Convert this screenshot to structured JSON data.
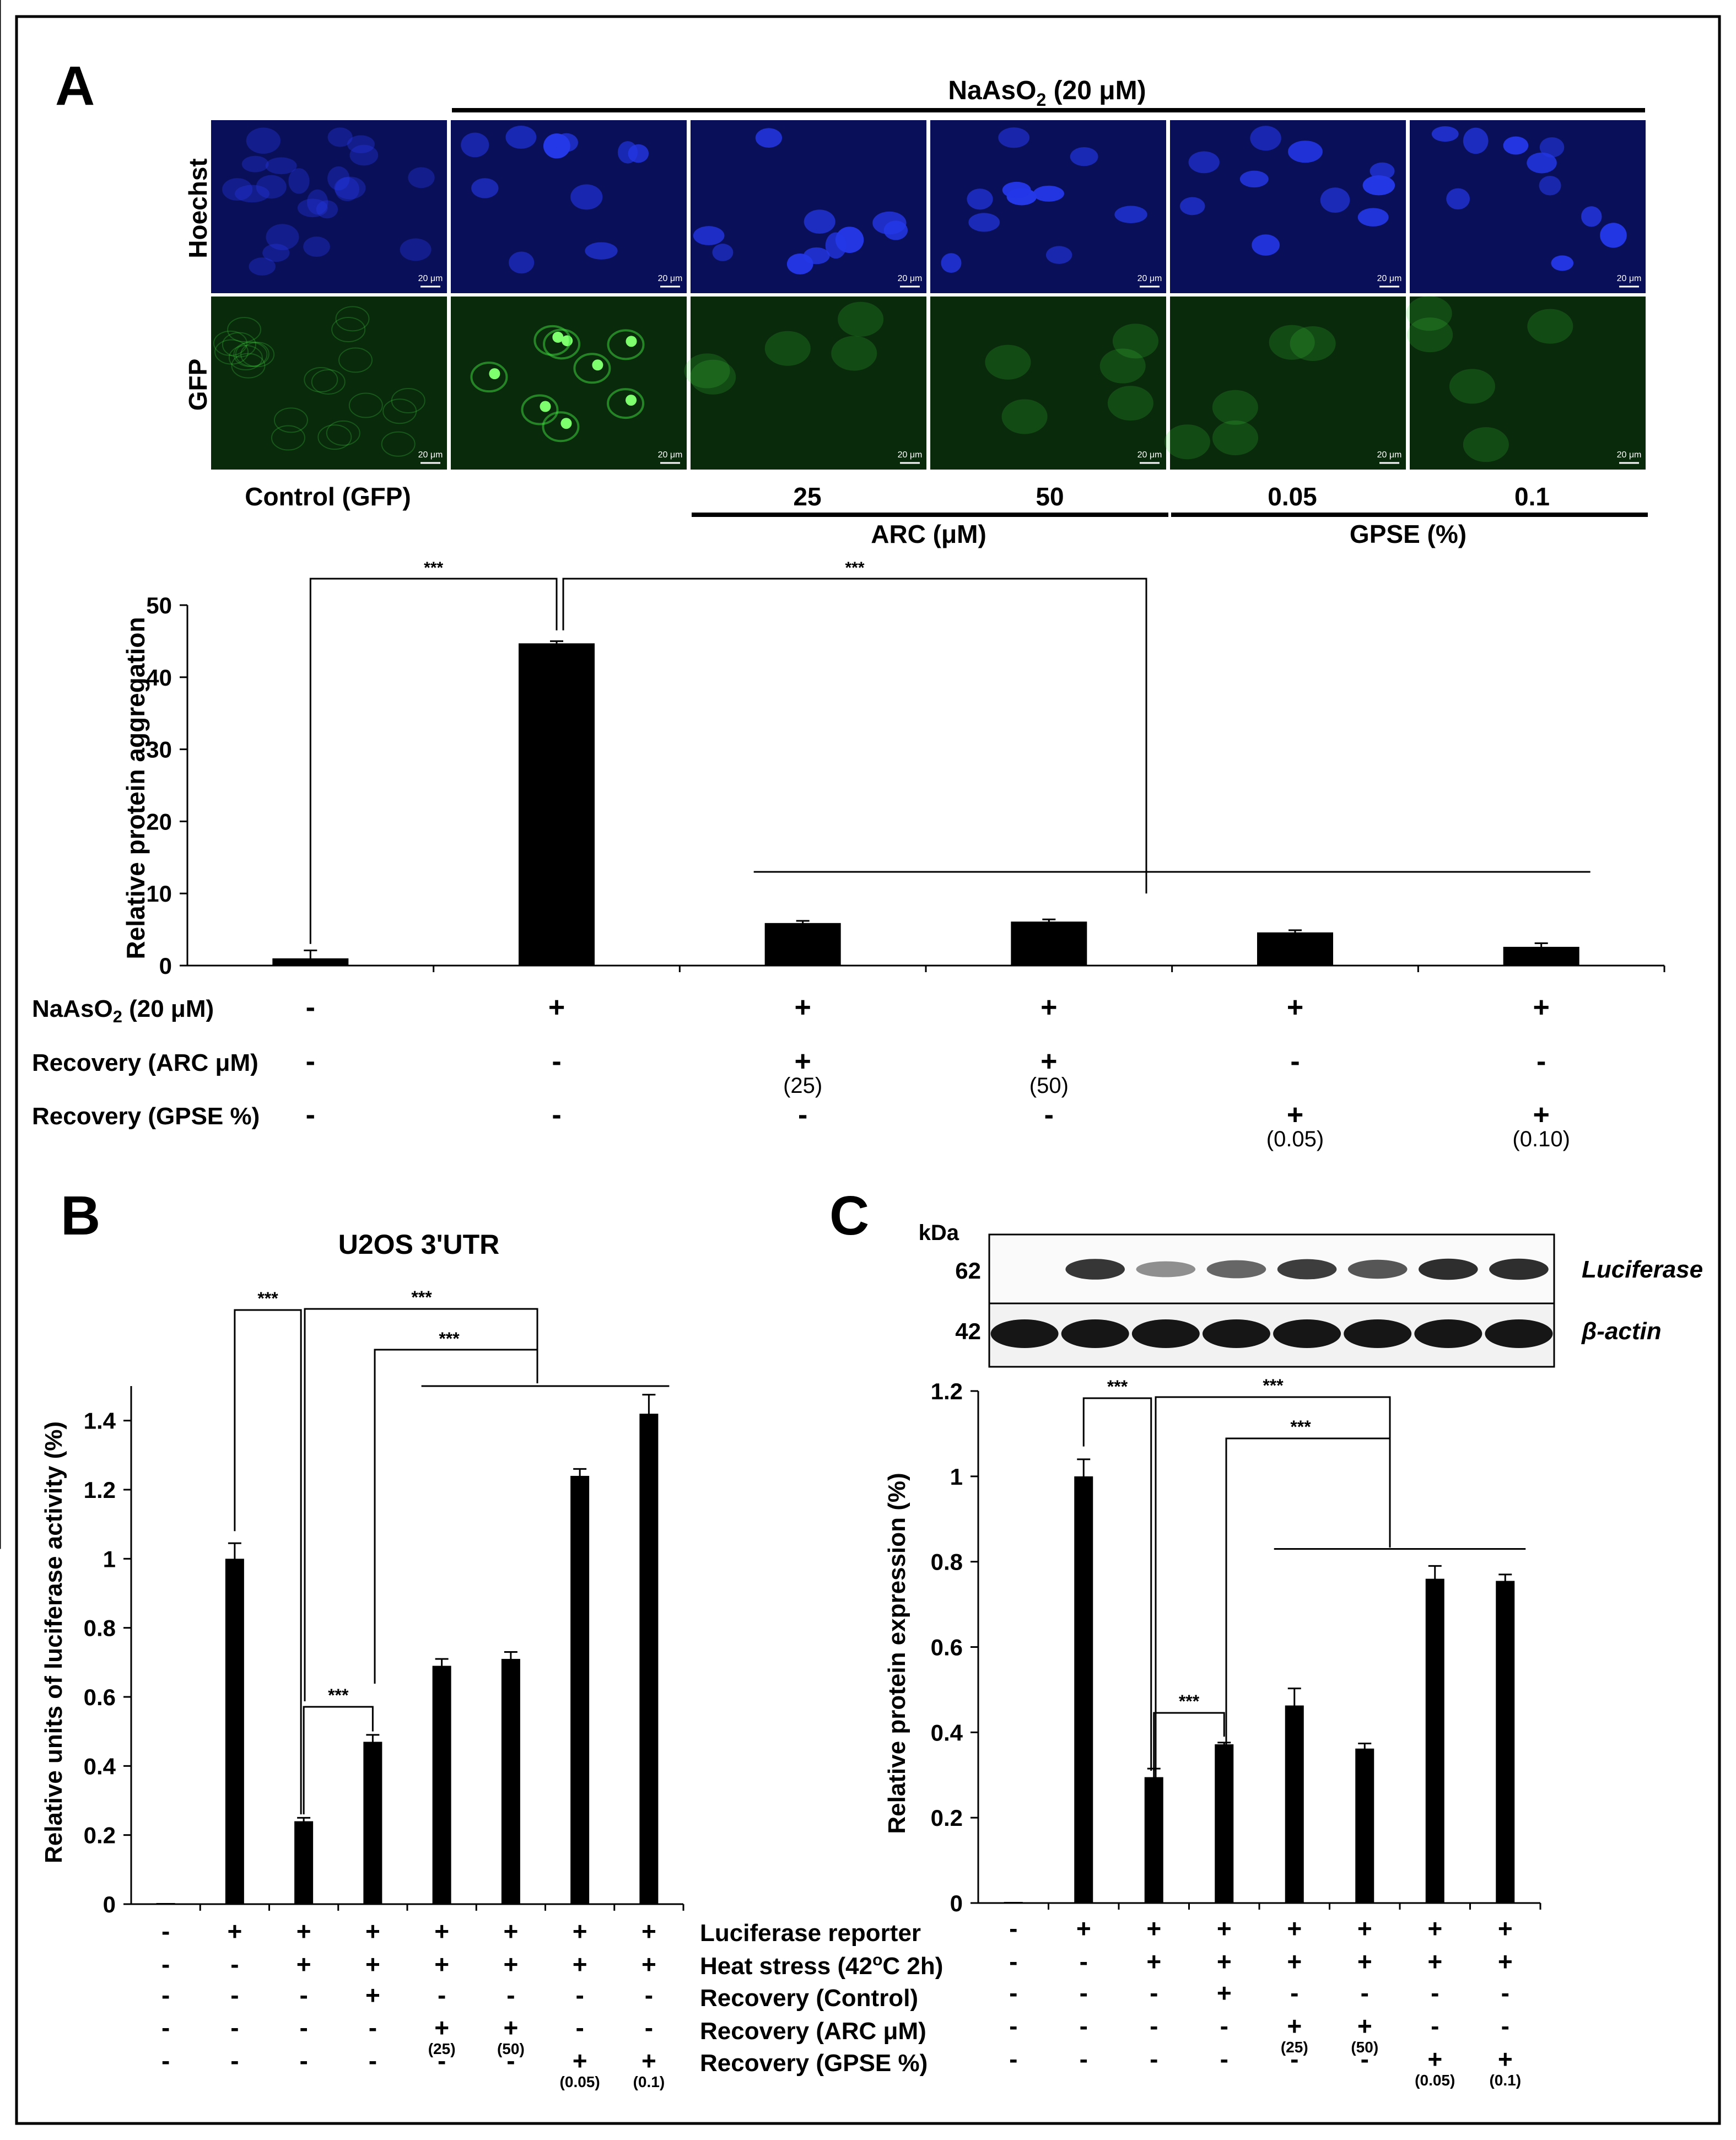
{
  "panel_labels": {
    "a": "A",
    "b": "B",
    "c": "C"
  },
  "panel_a": {
    "treatment_header": "NaAsO",
    "treatment_header_sub": "2",
    "treatment_header_rest": " (20  μM)",
    "row_labels": [
      "Hoechst",
      "GFP"
    ],
    "scale_bar_label": "20 μm",
    "colors": {
      "hoechst": "#0a0f5a",
      "gfp": "#0a2a0c",
      "nucleus": "#2438e8",
      "gfp_signal": "#3fe040"
    },
    "column_labels": [
      "Control (GFP)",
      "",
      "25",
      "50",
      "0.05",
      "0.1"
    ],
    "group_labels": {
      "arc": "ARC (μM)",
      "gpse": "GPSE (%)"
    }
  },
  "chart_data": [
    {
      "type": "bar",
      "ylabel": "Relative protein aggregation",
      "ylim": [
        0,
        50
      ],
      "yticks": [
        "0",
        "10",
        "20",
        "30",
        "40",
        "50"
      ],
      "values": [
        1.0,
        44.7,
        5.9,
        6.1,
        4.6,
        2.6
      ],
      "errors": [
        1.1,
        0.3,
        0.3,
        0.3,
        0.3,
        0.5
      ],
      "significance": [
        "***",
        "***"
      ],
      "rows": [
        {
          "label": "NaAsO",
          "label_sub": "2",
          "label_rest": " (20 μM)",
          "cells": [
            "-",
            "+",
            "+",
            "+",
            "+",
            "+"
          ],
          "notes": [
            "",
            "",
            "",
            "",
            "",
            ""
          ]
        },
        {
          "label": "Recovery (ARC μM)",
          "label_sub": "",
          "label_rest": "",
          "cells": [
            "-",
            "-",
            "+",
            "+",
            "-",
            "-"
          ],
          "notes": [
            "",
            "",
            "(25)",
            "(50)",
            "",
            ""
          ]
        },
        {
          "label": "Recovery (GPSE %)",
          "label_sub": "",
          "label_rest": "",
          "cells": [
            "-",
            "-",
            "-",
            "-",
            "+",
            "+"
          ],
          "notes": [
            "",
            "",
            "",
            "",
            "(0.05)",
            "(0.10)"
          ]
        }
      ]
    },
    {
      "type": "bar",
      "title": "U2OS 3'UTR",
      "ylabel": "Relative units of luciferase activity (%)",
      "ylim": [
        0,
        1.5
      ],
      "yticks": [
        "0",
        "0.2",
        "0.4",
        "0.6",
        "0.8",
        "1",
        "1.2",
        "1.4"
      ],
      "values": [
        0,
        1.0,
        0.24,
        0.47,
        0.69,
        0.71,
        1.24,
        1.42
      ],
      "errors": [
        0,
        0.045,
        0.01,
        0.02,
        0.02,
        0.02,
        0.02,
        0.055
      ],
      "significance": [
        "***",
        "***",
        "***",
        "***"
      ],
      "rows": [
        {
          "cells": [
            "-",
            "+",
            "+",
            "+",
            "+",
            "+",
            "+",
            "+"
          ],
          "notes": [
            "",
            "",
            "",
            "",
            "",
            "",
            "",
            ""
          ]
        },
        {
          "cells": [
            "-",
            "-",
            "+",
            "+",
            "+",
            "+",
            "+",
            "+"
          ],
          "notes": [
            "",
            "",
            "",
            "",
            "",
            "",
            "",
            ""
          ]
        },
        {
          "cells": [
            "-",
            "-",
            "-",
            "+",
            "-",
            "-",
            "-",
            "-"
          ],
          "notes": [
            "",
            "",
            "",
            "",
            "",
            "",
            "",
            ""
          ]
        },
        {
          "cells": [
            "-",
            "-",
            "-",
            "-",
            "+",
            "+",
            "-",
            "-"
          ],
          "notes": [
            "",
            "",
            "",
            "",
            "(25)",
            "(50)",
            "",
            ""
          ]
        },
        {
          "cells": [
            "-",
            "-",
            "-",
            "-",
            "-",
            "-",
            "+",
            "+"
          ],
          "notes": [
            "",
            "",
            "",
            "",
            "",
            "",
            "(0.05)",
            "(0.1)"
          ]
        }
      ]
    },
    {
      "type": "bar",
      "ylabel": "Relative protein expression (%)",
      "ylim": [
        0,
        1.2
      ],
      "yticks": [
        "0",
        "0.2",
        "0.4",
        "0.6",
        "0.8",
        "1",
        "1.2"
      ],
      "values": [
        0,
        1.0,
        0.295,
        0.372,
        0.463,
        0.362,
        0.76,
        0.755
      ],
      "errors": [
        0,
        0.04,
        0.02,
        0.004,
        0.04,
        0.012,
        0.03,
        0.015
      ],
      "significance": [
        "***",
        "***",
        "***",
        "***"
      ],
      "rows": [
        {
          "cells": [
            "-",
            "+",
            "+",
            "+",
            "+",
            "+",
            "+",
            "+"
          ],
          "notes": [
            "",
            "",
            "",
            "",
            "",
            "",
            "",
            ""
          ]
        },
        {
          "cells": [
            "-",
            "-",
            "+",
            "+",
            "+",
            "+",
            "+",
            "+"
          ],
          "notes": [
            "",
            "",
            "",
            "",
            "",
            "",
            "",
            ""
          ]
        },
        {
          "cells": [
            "-",
            "-",
            "-",
            "+",
            "-",
            "-",
            "-",
            "-"
          ],
          "notes": [
            "",
            "",
            "",
            "",
            "",
            "",
            "",
            ""
          ]
        },
        {
          "cells": [
            "-",
            "-",
            "-",
            "-",
            "+",
            "+",
            "-",
            "-"
          ],
          "notes": [
            "",
            "",
            "",
            "",
            "(25)",
            "(50)",
            "",
            ""
          ]
        },
        {
          "cells": [
            "-",
            "-",
            "-",
            "-",
            "-",
            "-",
            "+",
            "+"
          ],
          "notes": [
            "",
            "",
            "",
            "",
            "",
            "",
            "(0.05)",
            "(0.1)"
          ]
        }
      ]
    }
  ],
  "shared_row_labels": [
    {
      "pre": "Luciferase reporter",
      "sup": "",
      "post": ""
    },
    {
      "pre": "Heat stress (42",
      "sup": "o",
      "post": "C 2h)"
    },
    {
      "pre": "Recovery (Control)",
      "sup": "",
      "post": ""
    },
    {
      "pre": "Recovery (ARC μM)",
      "sup": "",
      "post": ""
    },
    {
      "pre": "Recovery (GPSE %)",
      "sup": "",
      "post": ""
    }
  ],
  "blot": {
    "unit_label": "kDa",
    "markers": [
      "62",
      "42"
    ],
    "proteins": [
      "Luciferase",
      "β-actin"
    ],
    "luciferase_band_intensity": [
      0.0,
      0.85,
      0.3,
      0.55,
      0.8,
      0.65,
      0.9,
      0.9
    ],
    "actin_band_intensity": [
      1,
      1,
      1,
      1,
      1,
      1,
      1,
      1
    ]
  }
}
